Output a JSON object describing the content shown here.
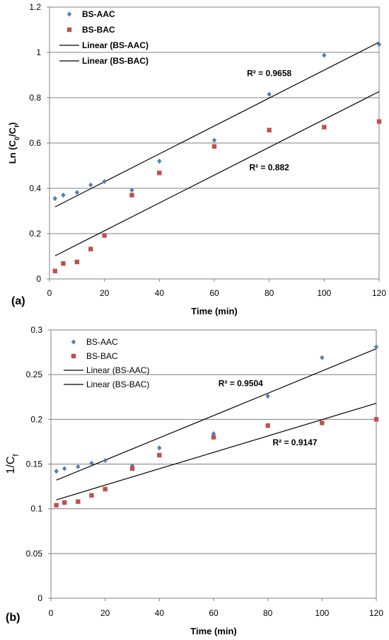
{
  "colors": {
    "aac": "#4F81BD",
    "bac": "#C0504D",
    "grid": "#7f7f7f",
    "axis": "#808080",
    "trend": "#000000"
  },
  "chart_data": [
    {
      "type": "scatter",
      "panel_label": "(a)",
      "xlabel": "Time (min)",
      "ylabel": {
        "base": "Ln (C",
        "sub1": "0",
        "mid": "/C",
        "sub2": "f",
        "end": ")"
      },
      "xlim": [
        0,
        120
      ],
      "ylim": [
        0,
        1.2
      ],
      "xticks": [
        0,
        20,
        40,
        60,
        80,
        100,
        120
      ],
      "yticks": [
        0,
        0.2,
        0.4,
        0.6,
        0.8,
        1,
        1.2
      ],
      "ytick_labels": [
        "0",
        "0.2",
        "0.4",
        "0.6",
        "0.8",
        "1",
        "1.2"
      ],
      "grid": "horizontal",
      "legend_bold": true,
      "legend": [
        "BS-AAC",
        "BS-BAC",
        "Linear (BS-AAC)",
        "Linear (BS-BAC)"
      ],
      "series": [
        {
          "name": "BS-AAC",
          "marker": "diamond",
          "x": [
            2,
            5,
            10,
            15,
            20,
            30,
            40,
            60,
            80,
            100,
            120
          ],
          "y": [
            0.355,
            0.37,
            0.382,
            0.415,
            0.43,
            0.392,
            0.52,
            0.612,
            0.815,
            0.987,
            1.035
          ]
        },
        {
          "name": "BS-BAC",
          "marker": "square",
          "x": [
            2,
            5,
            10,
            15,
            20,
            30,
            40,
            60,
            80,
            100,
            120
          ],
          "y": [
            0.035,
            0.068,
            0.075,
            0.132,
            0.192,
            0.37,
            0.468,
            0.585,
            0.657,
            0.67,
            0.695
          ]
        }
      ],
      "trendlines": [
        {
          "name": "Linear (BS-AAC)",
          "x0": 2,
          "y0": 0.318,
          "x1": 120,
          "y1": 1.045
        },
        {
          "name": "Linear (BS-BAC)",
          "x0": 2,
          "y0": 0.102,
          "x1": 120,
          "y1": 0.827
        }
      ],
      "annotations": [
        {
          "text": "R² = 0.9658",
          "x": 80,
          "y": 0.895
        },
        {
          "text": "R² = 0.882",
          "x": 80,
          "y": 0.48
        }
      ]
    },
    {
      "type": "scatter",
      "panel_label": "(b)",
      "xlabel": "Time (min)",
      "ylabel": {
        "base": "1/C",
        "sub1": "f"
      },
      "xlim": [
        0,
        120
      ],
      "ylim": [
        0,
        0.3
      ],
      "xticks": [
        0,
        20,
        40,
        60,
        80,
        100,
        120
      ],
      "yticks": [
        0,
        0.05,
        0.1,
        0.15,
        0.2,
        0.25,
        0.3
      ],
      "ytick_labels": [
        "0",
        "0.05",
        "0.1",
        "0.15",
        "0.2",
        "0.25",
        "0.3"
      ],
      "grid": "horizontal",
      "legend_bold": false,
      "legend": [
        "BS-AAC",
        "BS-BAC",
        "Linear (BS-AAC)",
        "Linear (BS-BAC)"
      ],
      "series": [
        {
          "name": "BS-AAC",
          "marker": "diamond",
          "x": [
            2,
            5,
            10,
            15,
            20,
            30,
            40,
            60,
            80,
            100,
            120
          ],
          "y": [
            0.142,
            0.145,
            0.147,
            0.151,
            0.154,
            0.148,
            0.168,
            0.184,
            0.226,
            0.269,
            0.281
          ]
        },
        {
          "name": "BS-BAC",
          "marker": "square",
          "x": [
            2,
            5,
            10,
            15,
            20,
            30,
            40,
            60,
            80,
            100,
            120
          ],
          "y": [
            0.104,
            0.107,
            0.108,
            0.115,
            0.122,
            0.145,
            0.16,
            0.18,
            0.193,
            0.196,
            0.2
          ]
        }
      ],
      "trendlines": [
        {
          "name": "Linear (BS-AAC)",
          "x0": 2,
          "y0": 0.132,
          "x1": 120,
          "y1": 0.279
        },
        {
          "name": "Linear (BS-BAC)",
          "x0": 2,
          "y0": 0.11,
          "x1": 120,
          "y1": 0.218
        }
      ],
      "annotations": [
        {
          "text": "R² = 0.9504",
          "x": 70,
          "y": 0.237
        },
        {
          "text": "R² = 0.9147",
          "x": 90,
          "y": 0.171
        }
      ]
    }
  ]
}
